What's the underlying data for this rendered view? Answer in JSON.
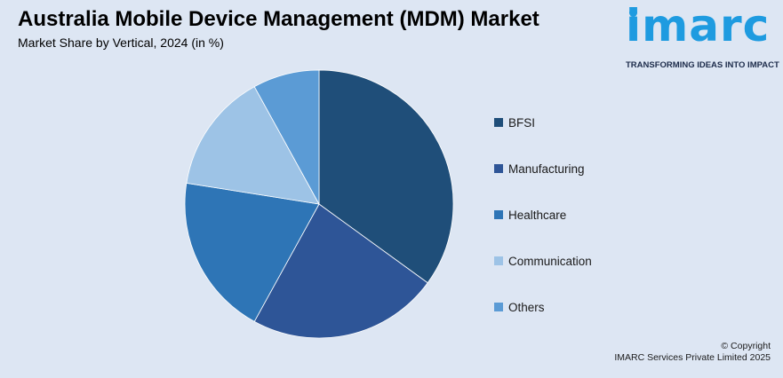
{
  "title": "Australia Mobile Device Management (MDM) Market",
  "subtitle": "Market Share by Vertical, 2024 (in %)",
  "logo": {
    "text": "imarc",
    "tagline": "TRANSFORMING IDEAS INTO IMPACT",
    "color": "#1e9be0"
  },
  "chart_data": {
    "type": "pie",
    "title": "Australia Mobile Device Management (MDM) Market",
    "subtitle": "Market Share by Vertical, 2024 (in %)",
    "legend_position": "right",
    "slices": [
      {
        "label": "BFSI",
        "value": 35,
        "color": "#1f4e79"
      },
      {
        "label": "Manufacturing",
        "value": 23,
        "color": "#2e5597"
      },
      {
        "label": "Healthcare",
        "value": 19.5,
        "color": "#2e75b6"
      },
      {
        "label": "Communication",
        "value": 14.5,
        "color": "#9dc3e6"
      },
      {
        "label": "Others",
        "value": 8,
        "color": "#5b9bd5"
      }
    ]
  },
  "footer": {
    "copyright": "© Copyright",
    "company": "IMARC Services Private Limited 2025"
  }
}
